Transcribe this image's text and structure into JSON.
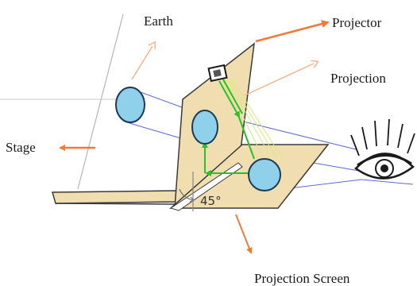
{
  "diagram": {
    "labels": {
      "earth": "Earth",
      "projector": "Projector",
      "projection": "Projection",
      "stage": "Stage",
      "projection_screen": "Projection Screen",
      "angle": "45°"
    },
    "colors": {
      "panel_fill": "#f1deb0",
      "panel_stroke": "#3a3a3a",
      "sphere_fill": "#8fd0ea",
      "sphere_stroke": "#1f3a55",
      "orange_arrow": "#f07a3a",
      "light_arrow": "#f4b48a",
      "beam_blue": "#5a6ad0",
      "green_arrow": "#2bbf2b",
      "yellow_rays": "#d9ea7a"
    }
  }
}
